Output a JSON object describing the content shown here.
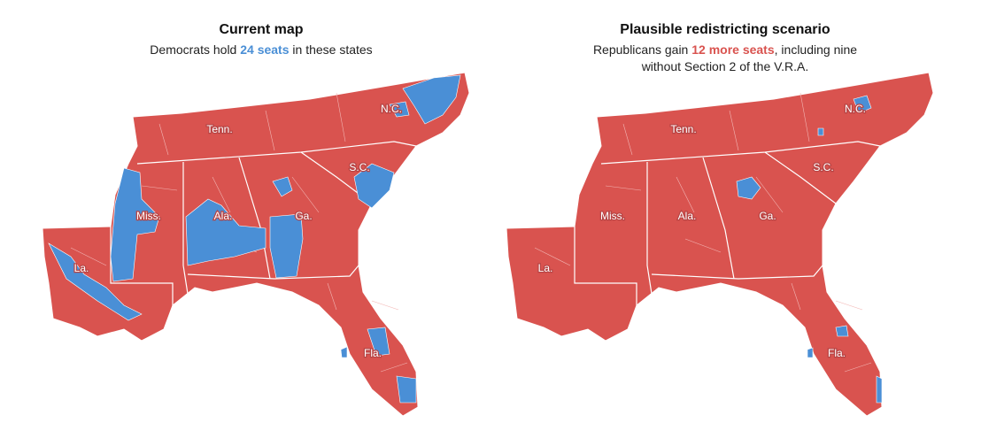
{
  "panels": [
    {
      "title": "Current map",
      "subtitle": [
        [
          {
            "text": "Democrats hold "
          },
          {
            "text": "24 seats",
            "color": "#4a8fd6"
          },
          {
            "text": " in these states"
          }
        ]
      ],
      "state_labels": [
        "Tenn.",
        "N.C.",
        "S.C.",
        "Miss.",
        "Ala.",
        "Ga.",
        "La.",
        "Fla."
      ]
    },
    {
      "title": "Plausible redistricting scenario",
      "subtitle": [
        [
          {
            "text": "Republicans gain "
          },
          {
            "text": "12 more seats",
            "color": "#d9534f"
          },
          {
            "text": ", including nine"
          }
        ],
        [
          {
            "text": "without Section 2 of the V.R.A."
          }
        ]
      ],
      "state_labels": [
        "Tenn.",
        "N.C.",
        "S.C.",
        "Miss.",
        "Ala.",
        "Ga.",
        "La.",
        "Fla."
      ]
    }
  ]
}
